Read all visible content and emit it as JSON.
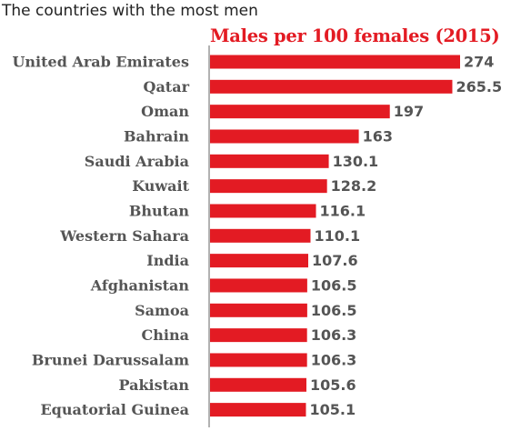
{
  "page": {
    "title": "The countries with the most men"
  },
  "colors": {
    "bar": "#e31b23",
    "title": "#e31b23",
    "label": "#555555",
    "axis": "#666666"
  },
  "chart_data": {
    "type": "bar",
    "orientation": "horizontal",
    "title": "Males per 100 females (2015)",
    "xlabel": "",
    "ylabel": "",
    "grid": false,
    "legend": "none",
    "xlim": [
      0,
      274
    ],
    "categories": [
      "United Arab Emirates",
      "Qatar",
      "Oman",
      "Bahrain",
      "Saudi Arabia",
      "Kuwait",
      "Bhutan",
      "Western Sahara",
      "India",
      "Afghanistan",
      "Samoa",
      "China",
      "Brunei Darussalam",
      "Pakistan",
      "Equatorial Guinea"
    ],
    "values": [
      274,
      265.5,
      197,
      163,
      130.1,
      128.2,
      116.1,
      110.1,
      107.6,
      106.5,
      106.5,
      106.3,
      106.3,
      105.6,
      105.1
    ],
    "value_labels": [
      "274",
      "265.5",
      "197",
      "163",
      "130.1",
      "128.2",
      "116.1",
      "110.1",
      "107.6",
      "106.5",
      "106.5",
      "106.3",
      "106.3",
      "105.6",
      "105.1"
    ]
  }
}
